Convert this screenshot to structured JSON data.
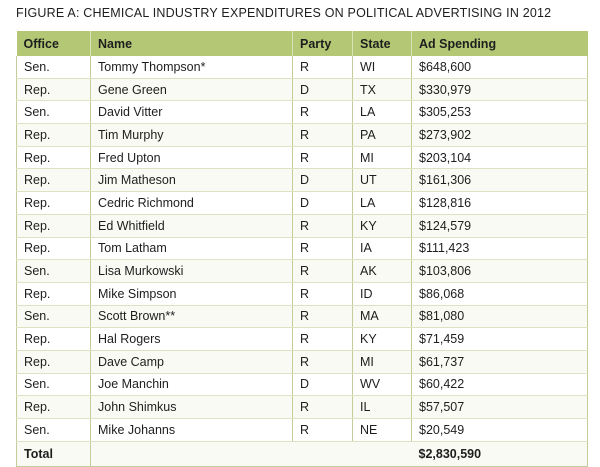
{
  "figure": {
    "title": "FIGURE A: CHEMICAL INDUSTRY EXPENDITURES ON POLITICAL ADVERTISING IN 2012"
  },
  "table": {
    "headers": {
      "office": "Office",
      "name": "Name",
      "party": "Party",
      "state": "State",
      "ad_spending": "Ad Spending"
    },
    "rows": [
      {
        "office": "Sen.",
        "name": "Tommy Thompson*",
        "party": "R",
        "state": "WI",
        "ad_spending": "$648,600"
      },
      {
        "office": "Rep.",
        "name": "Gene Green",
        "party": "D",
        "state": "TX",
        "ad_spending": "$330,979"
      },
      {
        "office": "Sen.",
        "name": "David Vitter",
        "party": "R",
        "state": "LA",
        "ad_spending": "$305,253"
      },
      {
        "office": "Rep.",
        "name": "Tim Murphy",
        "party": "R",
        "state": "PA",
        "ad_spending": "$273,902"
      },
      {
        "office": "Rep.",
        "name": "Fred Upton",
        "party": "R",
        "state": "MI",
        "ad_spending": "$203,104"
      },
      {
        "office": "Rep.",
        "name": "Jim Matheson",
        "party": "D",
        "state": "UT",
        "ad_spending": "$161,306"
      },
      {
        "office": "Rep.",
        "name": "Cedric Richmond",
        "party": "D",
        "state": "LA",
        "ad_spending": "$128,816"
      },
      {
        "office": "Rep.",
        "name": "Ed Whitfield",
        "party": "R",
        "state": "KY",
        "ad_spending": "$124,579"
      },
      {
        "office": "Rep.",
        "name": "Tom Latham",
        "party": "R",
        "state": "IA",
        "ad_spending": "$111,423"
      },
      {
        "office": "Sen.",
        "name": "Lisa Murkowski",
        "party": "R",
        "state": "AK",
        "ad_spending": "$103,806"
      },
      {
        "office": "Rep.",
        "name": "Mike Simpson",
        "party": "R",
        "state": "ID",
        "ad_spending": "$86,068"
      },
      {
        "office": "Sen.",
        "name": "Scott Brown**",
        "party": "R",
        "state": "MA",
        "ad_spending": "$81,080"
      },
      {
        "office": "Rep.",
        "name": "Hal Rogers",
        "party": "R",
        "state": "KY",
        "ad_spending": "$71,459"
      },
      {
        "office": "Rep.",
        "name": "Dave Camp",
        "party": "R",
        "state": "MI",
        "ad_spending": "$61,737"
      },
      {
        "office": "Sen.",
        "name": "Joe Manchin",
        "party": "D",
        "state": "WV",
        "ad_spending": "$60,422"
      },
      {
        "office": "Rep.",
        "name": "John Shimkus",
        "party": "R",
        "state": "IL",
        "ad_spending": "$57,507"
      },
      {
        "office": "Sen.",
        "name": "Mike Johanns",
        "party": "R",
        "state": "NE",
        "ad_spending": "$20,549"
      }
    ],
    "total": {
      "label": "Total",
      "ad_spending": "$2,830,590"
    }
  },
  "colors": {
    "header_bg": "#b4c774",
    "total_bg": "#e6ebd2",
    "grid_line": "#c2cd9a"
  }
}
